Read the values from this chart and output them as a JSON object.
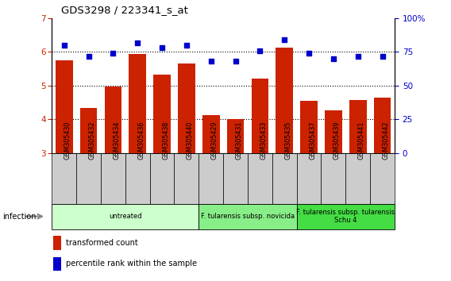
{
  "title": "GDS3298 / 223341_s_at",
  "samples": [
    "GSM305430",
    "GSM305432",
    "GSM305434",
    "GSM305436",
    "GSM305438",
    "GSM305440",
    "GSM305429",
    "GSM305431",
    "GSM305433",
    "GSM305435",
    "GSM305437",
    "GSM305439",
    "GSM305441",
    "GSM305442"
  ],
  "bar_values": [
    5.75,
    4.35,
    4.97,
    5.93,
    5.32,
    5.65,
    4.12,
    4.02,
    5.22,
    6.12,
    4.55,
    4.28,
    4.57,
    4.65
  ],
  "percentile_values": [
    80,
    72,
    74,
    82,
    78,
    80,
    68,
    68,
    76,
    84,
    74,
    70,
    72,
    72
  ],
  "bar_color": "#CC2200",
  "dot_color": "#0000CC",
  "ylim_left": [
    3,
    7
  ],
  "ylim_right": [
    0,
    100
  ],
  "yticks_left": [
    3,
    4,
    5,
    6,
    7
  ],
  "yticks_right": [
    0,
    25,
    50,
    75,
    100
  ],
  "groups": [
    {
      "label": "untreated",
      "start": 0,
      "end": 6,
      "color": "#CCFFCC"
    },
    {
      "label": "F. tularensis subsp. novicida",
      "start": 6,
      "end": 10,
      "color": "#88EE88"
    },
    {
      "label": "F. tularensis subsp. tularensis\nSchu 4",
      "start": 10,
      "end": 14,
      "color": "#44DD44"
    }
  ],
  "infection_label": "infection",
  "legend_bar_label": "transformed count",
  "legend_dot_label": "percentile rank within the sample",
  "bg_color": "#FFFFFF",
  "tick_bg_color": "#CCCCCC"
}
